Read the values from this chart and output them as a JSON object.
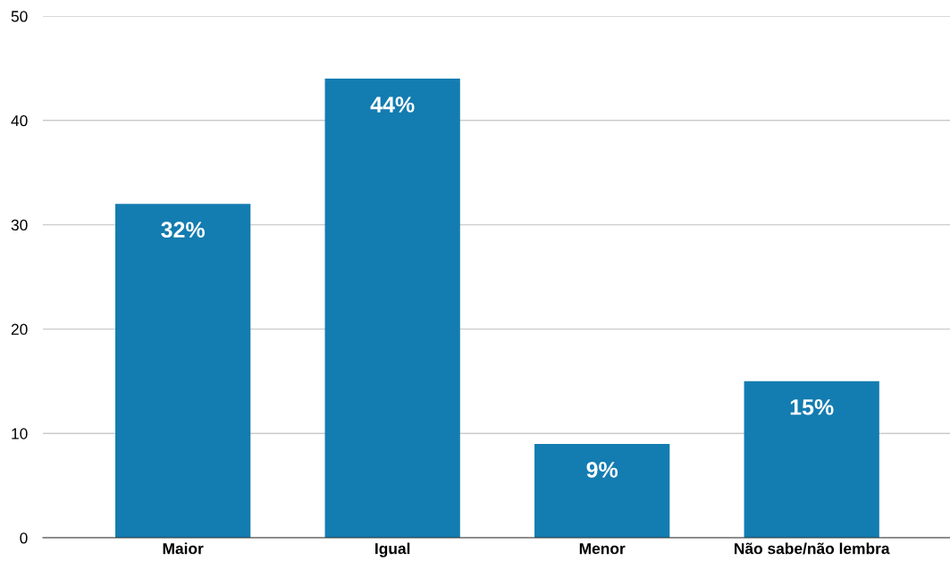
{
  "chart_data": {
    "type": "bar",
    "categories": [
      "Maior",
      "Igual",
      "Menor",
      "Não sabe/não lembra"
    ],
    "values": [
      32,
      44,
      9,
      15
    ],
    "value_labels": [
      "32%",
      "44%",
      "9%",
      "15%"
    ],
    "color": "#137cb0",
    "ylim": [
      0,
      50
    ],
    "yticks": [
      0,
      10,
      20,
      30,
      40,
      50
    ],
    "grid": "y",
    "legend": false
  }
}
